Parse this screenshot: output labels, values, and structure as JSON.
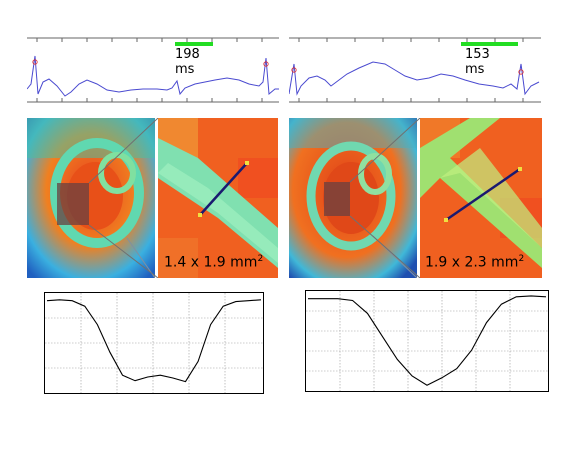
{
  "left": {
    "rr_label": "198 ms",
    "resolution_label": "1.4 x 1.9 mm",
    "resolution_exp": "2",
    "marker_color": "#22dd22",
    "profile": [
      0.04,
      0.03,
      0.04,
      0.1,
      0.3,
      0.6,
      0.85,
      0.91,
      0.87,
      0.85,
      0.88,
      0.92,
      0.7,
      0.3,
      0.1,
      0.05,
      0.04,
      0.03
    ]
  },
  "right": {
    "rr_label": "153 ms",
    "resolution_label": "1.9 x 2.3 mm",
    "resolution_exp": "2",
    "marker_color": "#22dd22",
    "profile": [
      0.04,
      0.04,
      0.04,
      0.06,
      0.2,
      0.45,
      0.7,
      0.88,
      0.98,
      0.9,
      0.8,
      0.6,
      0.3,
      0.1,
      0.02,
      0.01,
      0.02
    ]
  },
  "colors": {
    "ecg_trace": "#4a4ad0",
    "line_profile": "#000080"
  }
}
